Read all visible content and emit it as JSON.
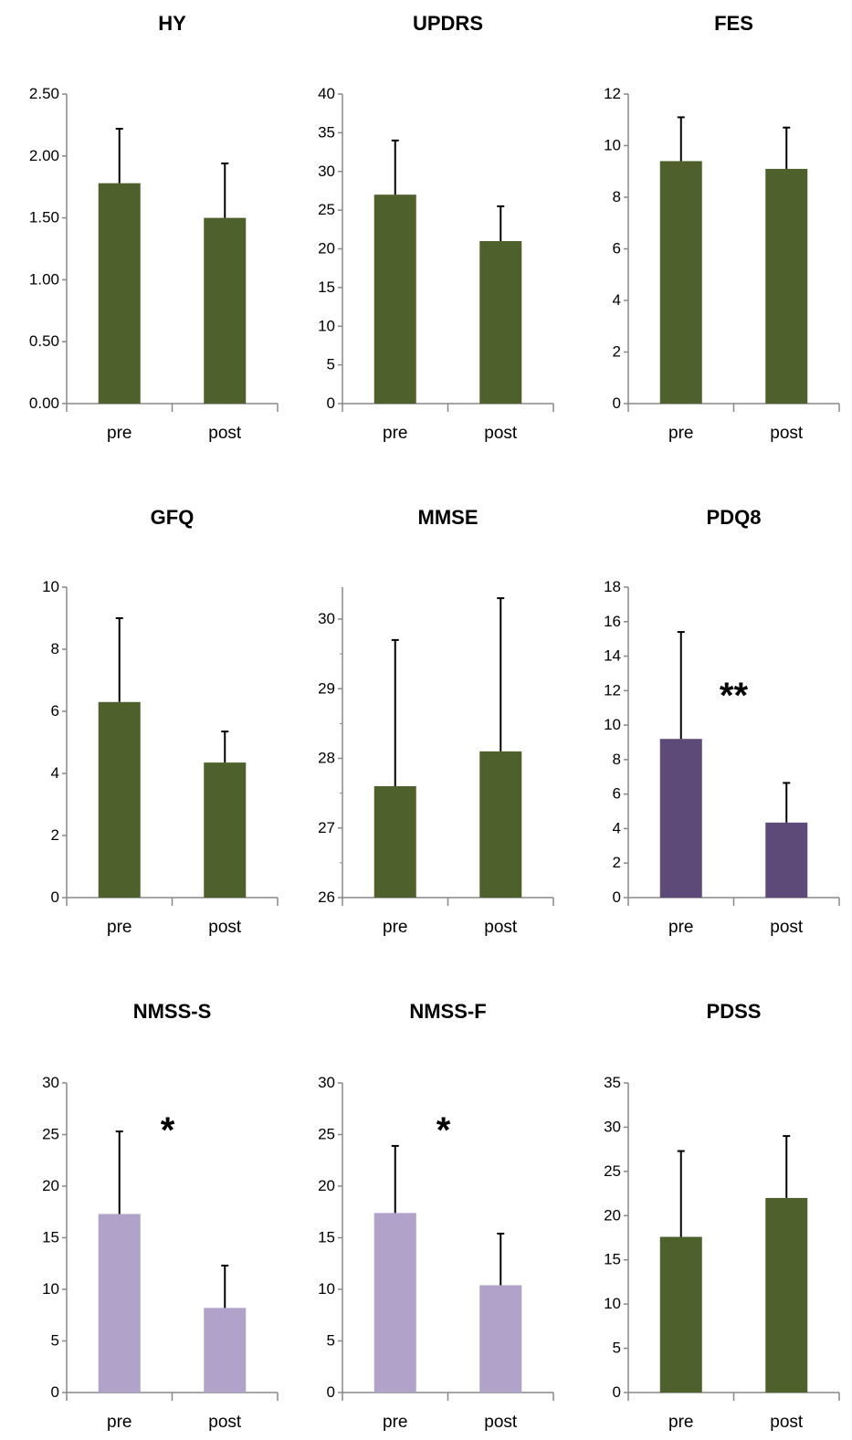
{
  "chart_data": [
    {
      "type": "bar",
      "title": "HY",
      "categories": [
        "pre",
        "post"
      ],
      "values": [
        1.78,
        1.5
      ],
      "errors": [
        0.44,
        0.44
      ],
      "ylim": [
        0,
        2.5
      ],
      "yticks": [
        0,
        0.5,
        1.0,
        1.5,
        2.0,
        2.5
      ],
      "ytick_labels": [
        "0.00",
        "0.50",
        "1.00",
        "1.50",
        "2.00",
        "2.50"
      ],
      "color": "#4e612c",
      "significance": ""
    },
    {
      "type": "bar",
      "title": "UPDRS",
      "categories": [
        "pre",
        "post"
      ],
      "values": [
        27,
        21
      ],
      "errors": [
        7,
        4.5
      ],
      "ylim": [
        0,
        40
      ],
      "yticks": [
        0,
        5,
        10,
        15,
        20,
        25,
        30,
        35,
        40
      ],
      "ytick_labels": [
        "0",
        "5",
        "10",
        "15",
        "20",
        "25",
        "30",
        "35",
        "40"
      ],
      "color": "#4e612c",
      "significance": ""
    },
    {
      "type": "bar",
      "title": "FES",
      "categories": [
        "pre",
        "post"
      ],
      "values": [
        9.4,
        9.1
      ],
      "errors": [
        1.7,
        1.6
      ],
      "ylim": [
        0,
        12
      ],
      "yticks": [
        0,
        2,
        4,
        6,
        8,
        10,
        12
      ],
      "ytick_labels": [
        "0",
        "2",
        "4",
        "6",
        "8",
        "10",
        "12"
      ],
      "color": "#4e612c",
      "significance": ""
    },
    {
      "type": "bar",
      "title": "GFQ",
      "categories": [
        "pre",
        "post"
      ],
      "values": [
        6.3,
        4.35
      ],
      "errors": [
        2.7,
        1.0
      ],
      "ylim": [
        0,
        10
      ],
      "yticks": [
        0,
        2,
        4,
        6,
        8,
        10
      ],
      "ytick_labels": [
        "0",
        "2",
        "4",
        "6",
        "8",
        "10"
      ],
      "color": "#4e612c",
      "significance": ""
    },
    {
      "type": "bar",
      "title": "MMSE",
      "categories": [
        "pre",
        "post"
      ],
      "values": [
        27.6,
        28.1
      ],
      "errors": [
        2.1,
        2.2
      ],
      "ylim": [
        26,
        30.5
      ],
      "yticks": [
        26,
        27,
        28,
        29,
        30
      ],
      "ytick_labels": [
        "26",
        "27",
        "28",
        "29",
        "30"
      ],
      "color": "#4e612c",
      "significance": ""
    },
    {
      "type": "bar",
      "title": "PDQ8",
      "categories": [
        "pre",
        "post"
      ],
      "values": [
        9.2,
        4.35
      ],
      "errors": [
        6.2,
        2.3
      ],
      "ylim": [
        0,
        18
      ],
      "yticks": [
        0,
        2,
        4,
        6,
        8,
        10,
        12,
        14,
        16,
        18
      ],
      "ytick_labels": [
        "0",
        "2",
        "4",
        "6",
        "8",
        "10",
        "12",
        "14",
        "16",
        "18"
      ],
      "color": "#5e4a78",
      "significance": "**"
    },
    {
      "type": "bar",
      "title": "NMSS-S",
      "categories": [
        "pre",
        "post"
      ],
      "values": [
        17.3,
        8.2
      ],
      "errors": [
        8.0,
        4.1
      ],
      "ylim": [
        0,
        30
      ],
      "yticks": [
        0,
        5,
        10,
        15,
        20,
        25,
        30
      ],
      "ytick_labels": [
        "0",
        "5",
        "10",
        "15",
        "20",
        "25",
        "30"
      ],
      "color": "#b1a2ca",
      "significance": "*"
    },
    {
      "type": "bar",
      "title": "NMSS-F",
      "categories": [
        "pre",
        "post"
      ],
      "values": [
        17.4,
        10.4
      ],
      "errors": [
        6.5,
        5.0
      ],
      "ylim": [
        0,
        30
      ],
      "yticks": [
        0,
        5,
        10,
        15,
        20,
        25,
        30
      ],
      "ytick_labels": [
        "0",
        "5",
        "10",
        "15",
        "20",
        "25",
        "30"
      ],
      "color": "#b1a2ca",
      "significance": "*"
    },
    {
      "type": "bar",
      "title": "PDSS",
      "categories": [
        "pre",
        "post"
      ],
      "values": [
        17.6,
        22
      ],
      "errors": [
        9.7,
        7.0
      ],
      "ylim": [
        0,
        35
      ],
      "yticks": [
        0,
        5,
        10,
        15,
        20,
        25,
        30,
        35
      ],
      "ytick_labels": [
        "0",
        "5",
        "10",
        "15",
        "20",
        "25",
        "30",
        "35"
      ],
      "color": "#4e612c",
      "significance": ""
    }
  ]
}
